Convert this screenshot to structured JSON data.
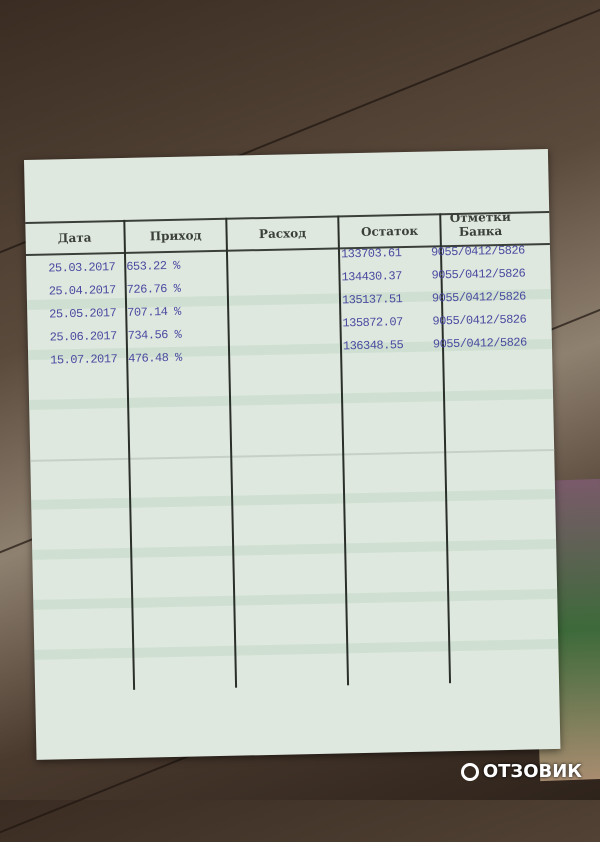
{
  "passbook": {
    "headers": [
      "Дата",
      "Приход",
      "Расход",
      "Остаток",
      "Отметки Банка"
    ],
    "rows": [
      {
        "date": "25.03.2017",
        "income": "653.22 %",
        "expense": "",
        "balance": "133703.61",
        "bank_mark": "9055/0412/5826"
      },
      {
        "date": "25.04.2017",
        "income": "726.76 %",
        "expense": "",
        "balance": "134430.37",
        "bank_mark": "9055/0412/5826"
      },
      {
        "date": "25.05.2017",
        "income": "707.14 %",
        "expense": "",
        "balance": "135137.51",
        "bank_mark": "9055/0412/5826"
      },
      {
        "date": "25.06.2017",
        "income": "734.56 %",
        "expense": "",
        "balance": "135872.07",
        "bank_mark": "9055/0412/5826"
      },
      {
        "date": "15.07.2017",
        "income": "476.48 %",
        "expense": "",
        "balance": "136348.55",
        "bank_mark": "9055/0412/5826"
      }
    ]
  },
  "watermark": "ОТЗОВИК"
}
